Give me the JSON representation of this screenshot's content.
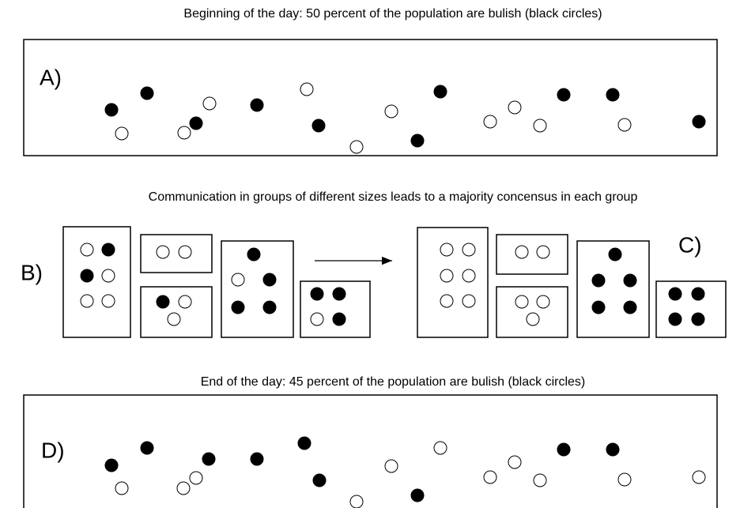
{
  "top_caption": "Beginning of the day: 50 percent of the population are bulish (black circles)",
  "panel_a": {
    "label": "A)"
  },
  "middle_caption": "Communication in groups of different sizes leads to a majority concensus in each group",
  "panel_b": {
    "label": "B)"
  },
  "panel_c": {
    "label": "C)"
  },
  "bottom_caption": "End of the day: 45 percent of the population are bulish (black circles)",
  "panel_d": {
    "label": "D)"
  }
}
